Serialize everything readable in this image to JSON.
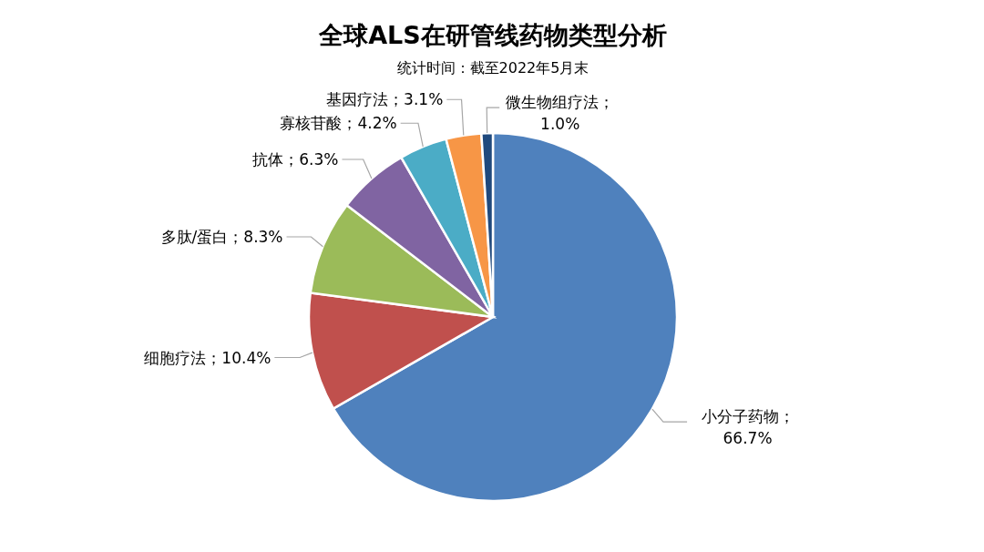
{
  "chart_data": {
    "type": "pie",
    "title": "全球ALS在研管线药物类型分析",
    "subtitle": "统计时间：截至2022年5月末",
    "categories": [
      "小分子药物",
      "细胞疗法",
      "多肽/蛋白",
      "抗体",
      "寡核苷酸",
      "基因疗法",
      "微生物组疗法"
    ],
    "values": [
      66.7,
      10.4,
      8.3,
      6.3,
      4.2,
      3.1,
      1.0
    ],
    "colors": [
      "#4f81bd",
      "#c0504d",
      "#9bbb59",
      "#8064a2",
      "#4bacc6",
      "#f79646",
      "#1f497d"
    ],
    "value_labels": [
      "；66.7%",
      "；10.4%",
      "；8.3%",
      "；6.3%",
      "；4.2%",
      "；3.1%",
      "；1.0%"
    ]
  }
}
